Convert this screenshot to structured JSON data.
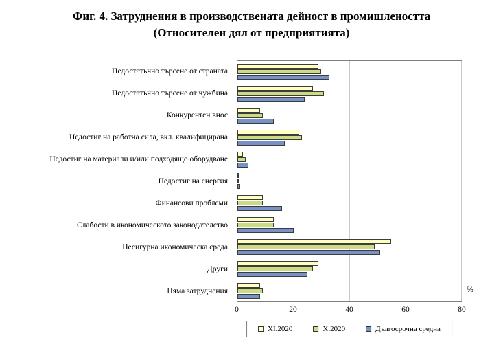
{
  "title": {
    "line1": "Фиг. 4. Затруднения в производствената дейност в промишлеността",
    "line2": "(Относителен дял от предприятията)"
  },
  "chart_data": {
    "type": "bar",
    "orientation": "horizontal",
    "title": "Фиг. 4. Затруднения в производствената дейност в промишлеността (Относителен дял от предприятията)",
    "categories": [
      "Недостатъчно търсене от страната",
      "Недостатъчно търсене от чужбина",
      "Конкурентен внос",
      "Недостиг на работна сила, вкл. квалифицирана",
      "Недостиг на материали и/или подходящо оборудване",
      "Недостиг на енергия",
      "Финансови проблеми",
      "Слабости в икономическото законодателство",
      "Несигурна икономическа среда",
      "Други",
      "Няма затруднения"
    ],
    "series": [
      {
        "name": "XI.2020",
        "color": "#FFFFC2",
        "values": [
          29,
          27,
          8,
          22,
          2,
          0.5,
          9,
          13,
          55,
          29,
          8
        ]
      },
      {
        "name": "X.2020",
        "color": "#CBDC82",
        "values": [
          30,
          31,
          9,
          23,
          3,
          0.5,
          9,
          13,
          49,
          27,
          9
        ]
      },
      {
        "name": "Дългосрочна средна",
        "color": "#7792C7",
        "values": [
          33,
          24,
          13,
          17,
          4,
          1,
          16,
          20,
          51,
          25,
          8
        ]
      }
    ],
    "xlim": [
      0,
      80
    ],
    "xticks": [
      0,
      20,
      40,
      60,
      80
    ],
    "x_unit": "%",
    "grid": true,
    "legend_position": "bottom"
  }
}
